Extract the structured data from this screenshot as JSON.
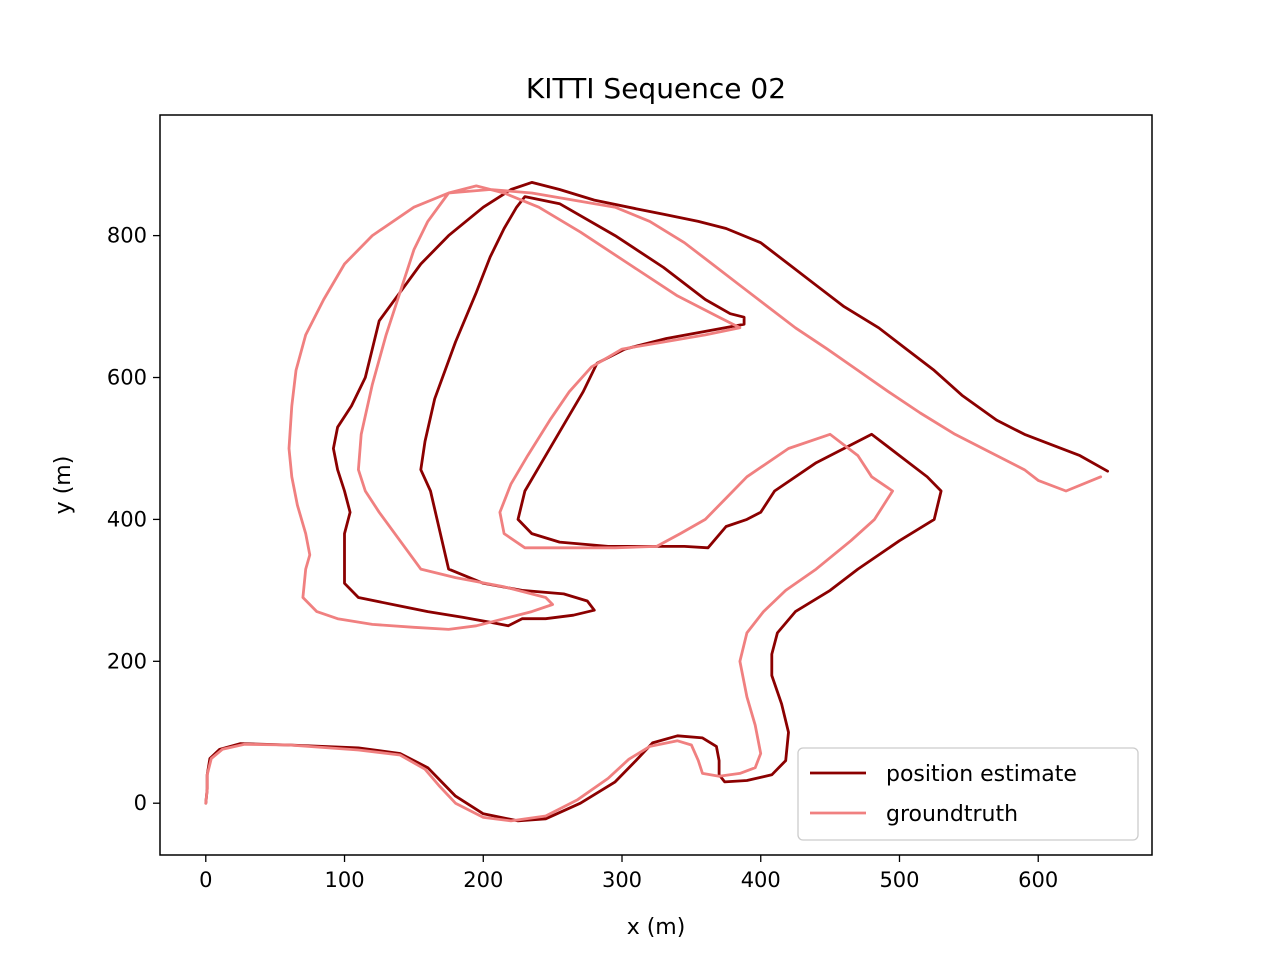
{
  "chart_data": {
    "type": "line",
    "title": "KITTI Sequence 02",
    "xlabel": "x (m)",
    "ylabel": "y (m)",
    "xlim": [
      -33,
      682
    ],
    "ylim": [
      -73,
      970
    ],
    "xticks": [
      0,
      100,
      200,
      300,
      400,
      500,
      600
    ],
    "yticks": [
      0,
      200,
      400,
      600,
      800
    ],
    "grid": false,
    "legend_position": "lower right",
    "series": [
      {
        "name": "position estimate",
        "color": "#8b0000",
        "points": [
          [
            0,
            0
          ],
          [
            1,
            20
          ],
          [
            1,
            40
          ],
          [
            3,
            63
          ],
          [
            10,
            76
          ],
          [
            25,
            84
          ],
          [
            60,
            82
          ],
          [
            110,
            78
          ],
          [
            140,
            70
          ],
          [
            160,
            50
          ],
          [
            170,
            30
          ],
          [
            180,
            10
          ],
          [
            200,
            -15
          ],
          [
            225,
            -25
          ],
          [
            245,
            -22
          ],
          [
            270,
            0
          ],
          [
            295,
            30
          ],
          [
            310,
            60
          ],
          [
            322,
            85
          ],
          [
            340,
            95
          ],
          [
            358,
            92
          ],
          [
            368,
            80
          ],
          [
            370,
            60
          ],
          [
            370,
            40
          ],
          [
            374,
            30
          ],
          [
            390,
            32
          ],
          [
            408,
            40
          ],
          [
            418,
            60
          ],
          [
            420,
            100
          ],
          [
            415,
            140
          ],
          [
            408,
            180
          ],
          [
            408,
            210
          ],
          [
            412,
            240
          ],
          [
            425,
            270
          ],
          [
            450,
            300
          ],
          [
            470,
            330
          ],
          [
            500,
            370
          ],
          [
            525,
            400
          ],
          [
            530,
            440
          ],
          [
            520,
            460
          ],
          [
            500,
            490
          ],
          [
            480,
            520
          ],
          [
            440,
            480
          ],
          [
            410,
            440
          ],
          [
            400,
            410
          ],
          [
            390,
            400
          ],
          [
            375,
            390
          ],
          [
            362,
            360
          ],
          [
            345,
            362
          ],
          [
            325,
            362
          ],
          [
            290,
            362
          ],
          [
            255,
            368
          ],
          [
            235,
            380
          ],
          [
            225,
            400
          ],
          [
            230,
            440
          ],
          [
            242,
            480
          ],
          [
            260,
            540
          ],
          [
            272,
            580
          ],
          [
            282,
            620
          ],
          [
            302,
            640
          ],
          [
            332,
            655
          ],
          [
            360,
            665
          ],
          [
            388,
            675
          ],
          [
            388,
            685
          ],
          [
            378,
            690
          ],
          [
            360,
            710
          ],
          [
            330,
            755
          ],
          [
            295,
            800
          ],
          [
            255,
            845
          ],
          [
            230,
            855
          ],
          [
            224,
            840
          ],
          [
            215,
            810
          ],
          [
            205,
            770
          ],
          [
            195,
            720
          ],
          [
            180,
            650
          ],
          [
            165,
            570
          ],
          [
            158,
            510
          ],
          [
            155,
            470
          ],
          [
            162,
            440
          ],
          [
            175,
            330
          ],
          [
            200,
            310
          ],
          [
            228,
            300
          ],
          [
            258,
            295
          ],
          [
            275,
            285
          ],
          [
            280,
            272
          ],
          [
            265,
            265
          ],
          [
            245,
            260
          ],
          [
            228,
            260
          ],
          [
            218,
            250
          ],
          [
            205,
            255
          ],
          [
            185,
            262
          ],
          [
            160,
            270
          ],
          [
            140,
            278
          ],
          [
            110,
            290
          ],
          [
            100,
            310
          ],
          [
            100,
            340
          ],
          [
            100,
            380
          ],
          [
            104,
            410
          ],
          [
            100,
            440
          ],
          [
            95,
            470
          ],
          [
            92,
            500
          ],
          [
            95,
            530
          ],
          [
            105,
            560
          ],
          [
            115,
            600
          ],
          [
            120,
            640
          ],
          [
            125,
            680
          ],
          [
            140,
            720
          ],
          [
            155,
            760
          ],
          [
            175,
            800
          ],
          [
            200,
            840
          ],
          [
            220,
            865
          ],
          [
            235,
            875
          ],
          [
            255,
            865
          ],
          [
            280,
            850
          ],
          [
            310,
            838
          ],
          [
            330,
            830
          ],
          [
            355,
            820
          ],
          [
            375,
            810
          ],
          [
            400,
            790
          ],
          [
            420,
            760
          ],
          [
            440,
            730
          ],
          [
            460,
            700
          ],
          [
            485,
            670
          ],
          [
            505,
            640
          ],
          [
            525,
            610
          ],
          [
            545,
            575
          ],
          [
            570,
            540
          ],
          [
            590,
            520
          ],
          [
            610,
            505
          ],
          [
            630,
            490
          ],
          [
            650,
            468
          ]
        ]
      },
      {
        "name": "groundtruth",
        "color": "#f08080",
        "points": [
          [
            0,
            0
          ],
          [
            1,
            20
          ],
          [
            1,
            40
          ],
          [
            4,
            63
          ],
          [
            12,
            76
          ],
          [
            28,
            83
          ],
          [
            60,
            82
          ],
          [
            110,
            75
          ],
          [
            140,
            68
          ],
          [
            158,
            48
          ],
          [
            168,
            25
          ],
          [
            180,
            0
          ],
          [
            200,
            -20
          ],
          [
            220,
            -25
          ],
          [
            245,
            -18
          ],
          [
            268,
            5
          ],
          [
            290,
            35
          ],
          [
            305,
            62
          ],
          [
            320,
            80
          ],
          [
            340,
            88
          ],
          [
            350,
            82
          ],
          [
            355,
            60
          ],
          [
            358,
            42
          ],
          [
            370,
            38
          ],
          [
            385,
            42
          ],
          [
            396,
            50
          ],
          [
            400,
            70
          ],
          [
            396,
            110
          ],
          [
            390,
            150
          ],
          [
            385,
            200
          ],
          [
            390,
            240
          ],
          [
            402,
            270
          ],
          [
            418,
            300
          ],
          [
            440,
            330
          ],
          [
            465,
            370
          ],
          [
            482,
            400
          ],
          [
            495,
            440
          ],
          [
            480,
            460
          ],
          [
            470,
            490
          ],
          [
            450,
            520
          ],
          [
            420,
            500
          ],
          [
            390,
            460
          ],
          [
            375,
            430
          ],
          [
            360,
            400
          ],
          [
            342,
            380
          ],
          [
            325,
            362
          ],
          [
            295,
            360
          ],
          [
            260,
            360
          ],
          [
            230,
            360
          ],
          [
            215,
            380
          ],
          [
            212,
            410
          ],
          [
            220,
            450
          ],
          [
            232,
            490
          ],
          [
            248,
            540
          ],
          [
            262,
            580
          ],
          [
            278,
            615
          ],
          [
            300,
            640
          ],
          [
            330,
            650
          ],
          [
            360,
            660
          ],
          [
            385,
            670
          ],
          [
            370,
            685
          ],
          [
            340,
            715
          ],
          [
            305,
            760
          ],
          [
            270,
            805
          ],
          [
            240,
            840
          ],
          [
            215,
            860
          ],
          [
            195,
            870
          ],
          [
            175,
            860
          ],
          [
            160,
            820
          ],
          [
            150,
            780
          ],
          [
            140,
            720
          ],
          [
            130,
            660
          ],
          [
            120,
            590
          ],
          [
            112,
            520
          ],
          [
            110,
            470
          ],
          [
            115,
            440
          ],
          [
            125,
            410
          ],
          [
            140,
            370
          ],
          [
            155,
            330
          ],
          [
            180,
            318
          ],
          [
            215,
            305
          ],
          [
            245,
            290
          ],
          [
            250,
            280
          ],
          [
            235,
            270
          ],
          [
            215,
            260
          ],
          [
            195,
            250
          ],
          [
            175,
            245
          ],
          [
            150,
            248
          ],
          [
            120,
            252
          ],
          [
            95,
            260
          ],
          [
            80,
            270
          ],
          [
            70,
            290
          ],
          [
            72,
            330
          ],
          [
            75,
            350
          ],
          [
            72,
            380
          ],
          [
            66,
            420
          ],
          [
            62,
            460
          ],
          [
            60,
            500
          ],
          [
            62,
            560
          ],
          [
            65,
            610
          ],
          [
            72,
            660
          ],
          [
            85,
            710
          ],
          [
            100,
            760
          ],
          [
            120,
            800
          ],
          [
            150,
            840
          ],
          [
            175,
            860
          ],
          [
            205,
            865
          ],
          [
            235,
            860
          ],
          [
            265,
            850
          ],
          [
            295,
            840
          ],
          [
            320,
            820
          ],
          [
            345,
            790
          ],
          [
            365,
            760
          ],
          [
            385,
            730
          ],
          [
            405,
            700
          ],
          [
            425,
            670
          ],
          [
            448,
            640
          ],
          [
            470,
            610
          ],
          [
            492,
            580
          ],
          [
            515,
            550
          ],
          [
            540,
            520
          ],
          [
            565,
            495
          ],
          [
            590,
            470
          ],
          [
            600,
            455
          ],
          [
            620,
            440
          ],
          [
            645,
            460
          ]
        ]
      }
    ]
  }
}
